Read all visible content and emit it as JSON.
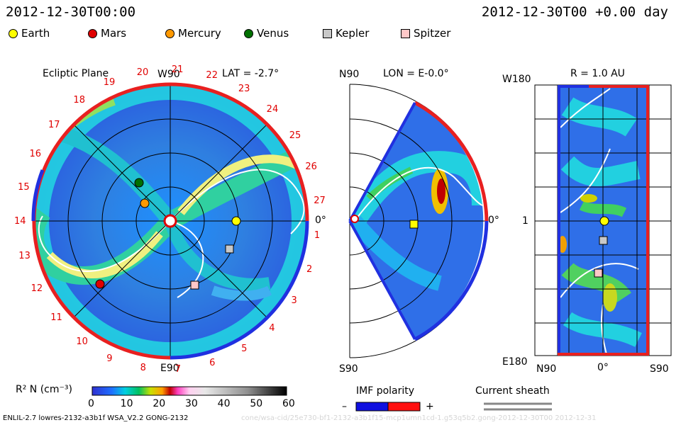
{
  "header": {
    "timestamp_left": "2012-12-30T00:00",
    "timestamp_right": "2012-12-30T00 +0.00 day"
  },
  "legend": [
    {
      "name": "Earth",
      "color": "#ffff00",
      "shape": "dot"
    },
    {
      "name": "Mars",
      "color": "#e00000",
      "shape": "dot"
    },
    {
      "name": "Mercury",
      "color": "#ff9900",
      "shape": "dot"
    },
    {
      "name": "Venus",
      "color": "#007000",
      "shape": "dot"
    },
    {
      "name": "Kepler",
      "color": "#c8c8c8",
      "shape": "square"
    },
    {
      "name": "Spitzer",
      "color": "#ffc8c8",
      "shape": "square"
    }
  ],
  "panels": {
    "ecliptic": {
      "title": "Ecliptic Plane",
      "lat": "LAT = -2.7°",
      "top_label": "W90",
      "bottom_label": "E90",
      "right_label": "0°",
      "carrington_numbers": [
        "1",
        "2",
        "3",
        "4",
        "5",
        "6",
        "7",
        "8",
        "9",
        "10",
        "11",
        "12",
        "13",
        "14",
        "15",
        "16",
        "17",
        "18",
        "19",
        "20",
        "21",
        "22",
        "23",
        "24",
        "25",
        "26",
        "27"
      ]
    },
    "meridional": {
      "title": "LON = E-0.0°",
      "top_label": "N90",
      "bottom_label": "S90",
      "right_label": "0°"
    },
    "radial": {
      "title": "R = 1.0 AU",
      "top_left_label": "W180",
      "mid_label": "1",
      "bottom_left_label": "E180",
      "x_labels": [
        "N90",
        "0°",
        "S90"
      ]
    }
  },
  "colorbar": {
    "label": "R² N (cm⁻³)",
    "ticks": [
      "0",
      "10",
      "20",
      "30",
      "40",
      "50",
      "60"
    ]
  },
  "imf": {
    "title": "IMF polarity",
    "minus": "–",
    "plus": "+"
  },
  "sheath": {
    "title": "Current sheath"
  },
  "footer": {
    "model": "ENLIL-2.7 lowres-2132-a3b1f WSA_V2.2 GONG-2132",
    "path": "cone/wsa-cid/25e730-bf1-2132-a3b1f15-mcp1umn1cd-1.g53q5b2.gong-2012-12-30T00   2012-12-31"
  }
}
